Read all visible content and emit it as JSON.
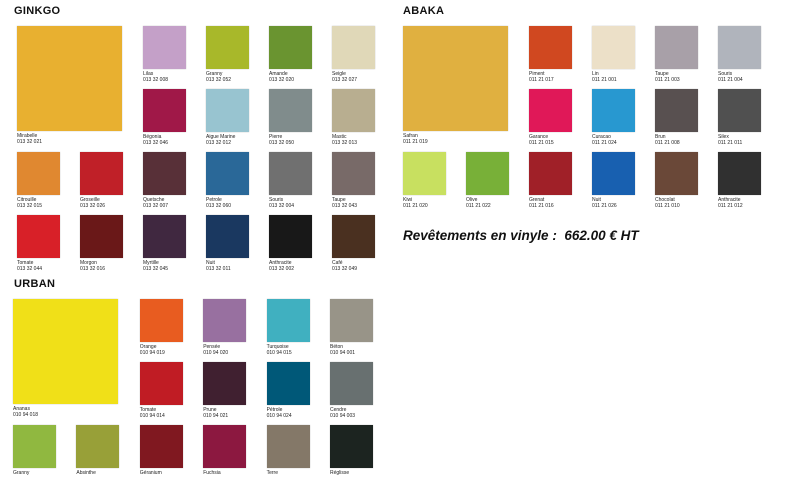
{
  "sections": [
    {
      "title": "GINKGO",
      "swatches": [
        {
          "name": "Mirabelle",
          "code": "013 32 021",
          "color": "#e8b030"
        },
        {
          "name": "Lilas",
          "code": "013 32 008",
          "color": "#c4a0c8"
        },
        {
          "name": "Granny",
          "code": "013 32 052",
          "color": "#a8b82a"
        },
        {
          "name": "Amande",
          "code": "013 32 020",
          "color": "#6a9430"
        },
        {
          "name": "Seigle",
          "code": "013 32 027",
          "color": "#e0d8b8"
        },
        {
          "name": "Bégonia",
          "code": "013 32 046",
          "color": "#a01848"
        },
        {
          "name": "Aigue Marine",
          "code": "013 32 012",
          "color": "#98c4d0"
        },
        {
          "name": "Pierre",
          "code": "013 32 050",
          "color": "#808c8c"
        },
        {
          "name": "Mastic",
          "code": "013 32 013",
          "color": "#b8ae90"
        },
        {
          "name": "Citrouille",
          "code": "013 32 015",
          "color": "#e08830"
        },
        {
          "name": "Groseille",
          "code": "013 32 026",
          "color": "#c02028"
        },
        {
          "name": "Quetsche",
          "code": "013 32 007",
          "color": "#583038"
        },
        {
          "name": "Petrole",
          "code": "013 32 060",
          "color": "#2a6898"
        },
        {
          "name": "Souris",
          "code": "013 32 004",
          "color": "#707070"
        },
        {
          "name": "Taupe",
          "code": "013 32 043",
          "color": "#786a68"
        },
        {
          "name": "Tomate",
          "code": "013 32 044",
          "color": "#d82028"
        },
        {
          "name": "Morgon",
          "code": "013 32 016",
          "color": "#6a1818"
        },
        {
          "name": "Myrtille",
          "code": "013 32 045",
          "color": "#402840"
        },
        {
          "name": "Nuit",
          "code": "013 32 011",
          "color": "#1a3860"
        },
        {
          "name": "Anthracite",
          "code": "013 32 002",
          "color": "#181818"
        },
        {
          "name": "Café",
          "code": "013 32 049",
          "color": "#4a3020"
        }
      ]
    },
    {
      "title": "ABAKA",
      "swatches": [
        {
          "name": "Safran",
          "code": "011 21 019",
          "color": "#e0b040"
        },
        {
          "name": "Piment",
          "code": "011 21 017",
          "color": "#d04820"
        },
        {
          "name": "Lin",
          "code": "011 21 001",
          "color": "#ece0c8"
        },
        {
          "name": "Taupe",
          "code": "011 21 003",
          "color": "#a8a0a8"
        },
        {
          "name": "Souris",
          "code": "011 21 004",
          "color": "#b0b4bc"
        },
        {
          "name": "Garance",
          "code": "011 21 015",
          "color": "#e01858"
        },
        {
          "name": "Curacao",
          "code": "011 21 024",
          "color": "#2898d0"
        },
        {
          "name": "Brun",
          "code": "011 21 008",
          "color": "#585050"
        },
        {
          "name": "Silex",
          "code": "011 21 011",
          "color": "#505050"
        },
        {
          "name": "Kiwi",
          "code": "011 21 020",
          "color": "#c8e060"
        },
        {
          "name": "Olive",
          "code": "011 21 022",
          "color": "#78b038"
        },
        {
          "name": "Grenat",
          "code": "011 21 016",
          "color": "#a02028"
        },
        {
          "name": "Nuit",
          "code": "011 21 026",
          "color": "#1860b0"
        },
        {
          "name": "Chocolat",
          "code": "011 21 010",
          "color": "#6a4838"
        },
        {
          "name": "Anthracite",
          "code": "011 21 012",
          "color": "#303030"
        }
      ]
    },
    {
      "title": "URBAN",
      "swatches": [
        {
          "name": "Ananas",
          "code": "010 94 018",
          "color": "#f0e018"
        },
        {
          "name": "Orange",
          "code": "010 94 019",
          "color": "#e85c20"
        },
        {
          "name": "Pensée",
          "code": "010 94 020",
          "color": "#9870a0"
        },
        {
          "name": "Turquoise",
          "code": "010 94 015",
          "color": "#40b0c0"
        },
        {
          "name": "Béton",
          "code": "010 94 001",
          "color": "#989488"
        },
        {
          "name": "Tomate",
          "code": "010 94 014",
          "color": "#c01c24"
        },
        {
          "name": "Prune",
          "code": "010 94 021",
          "color": "#402030"
        },
        {
          "name": "Pétrole",
          "code": "010 94 024",
          "color": "#005878"
        },
        {
          "name": "Cendre",
          "code": "010 94 003",
          "color": "#687070"
        },
        {
          "name": "Granny",
          "color": "#90b840"
        },
        {
          "name": "Absinthe",
          "color": "#98a038"
        },
        {
          "name": "Géranium",
          "color": "#801820"
        },
        {
          "name": "Fuchsia",
          "color": "#8c1840"
        },
        {
          "name": "Terre",
          "color": "#847868"
        },
        {
          "name": "Réglisse",
          "color": "#1c2420"
        }
      ]
    }
  ],
  "price": "Revêtements en vinyle :  662.00 € HT"
}
